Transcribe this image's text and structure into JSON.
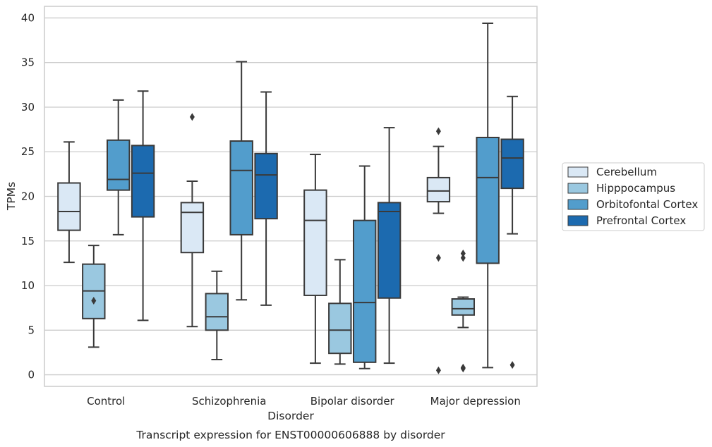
{
  "caption": "Transcript expression for ENST00000606888 by disorder",
  "chart_data": {
    "type": "box",
    "xlabel": "Disorder",
    "ylabel": "TPMs",
    "ylim": [
      -1.3,
      41.3
    ],
    "yticks": [
      0,
      5,
      10,
      15,
      20,
      25,
      30,
      35,
      40
    ],
    "grid": "horizontal",
    "legend_position": "right",
    "categories": [
      "Control",
      "Schizophrenia",
      "Bipolar disorder",
      "Major depression"
    ],
    "series": [
      {
        "name": "Cerebellum",
        "color": "#dae8f5",
        "boxes": [
          {
            "whislo": 12.6,
            "q1": 16.2,
            "med": 18.3,
            "q3": 21.5,
            "whishi": 26.1,
            "fliers": []
          },
          {
            "whislo": 5.4,
            "q1": 13.7,
            "med": 18.2,
            "q3": 19.3,
            "whishi": 21.7,
            "fliers": [
              28.9
            ]
          },
          {
            "whislo": 1.3,
            "q1": 8.9,
            "med": 17.3,
            "q3": 20.7,
            "whishi": 24.7,
            "fliers": []
          },
          {
            "whislo": 18.1,
            "q1": 19.4,
            "med": 20.6,
            "q3": 22.1,
            "whishi": 25.6,
            "fliers": [
              27.3,
              13.1,
              0.5
            ]
          }
        ]
      },
      {
        "name": "Hipppocampus",
        "color": "#9ac8e0",
        "boxes": [
          {
            "whislo": 3.1,
            "q1": 6.3,
            "med": 9.4,
            "q3": 12.4,
            "whishi": 14.5,
            "fliers": [
              8.3
            ]
          },
          {
            "whislo": 1.7,
            "q1": 5.0,
            "med": 6.5,
            "q3": 9.1,
            "whishi": 11.6,
            "fliers": []
          },
          {
            "whislo": 1.2,
            "q1": 2.4,
            "med": 5.0,
            "q3": 8.0,
            "whishi": 12.9,
            "fliers": []
          },
          {
            "whislo": 5.3,
            "q1": 6.7,
            "med": 7.4,
            "q3": 8.5,
            "whishi": 8.7,
            "fliers": [
              13.6,
              13.1,
              0.8,
              0.7
            ]
          }
        ]
      },
      {
        "name": "Orbitofontal Cortex",
        "color": "#529dcc",
        "boxes": [
          {
            "whislo": 15.7,
            "q1": 20.7,
            "med": 21.9,
            "q3": 26.3,
            "whishi": 30.8,
            "fliers": []
          },
          {
            "whislo": 8.4,
            "q1": 15.7,
            "med": 22.9,
            "q3": 26.2,
            "whishi": 35.1,
            "fliers": []
          },
          {
            "whislo": 0.7,
            "q1": 1.4,
            "med": 8.1,
            "q3": 17.3,
            "whishi": 23.4,
            "fliers": []
          },
          {
            "whislo": 0.8,
            "q1": 12.5,
            "med": 22.1,
            "q3": 26.6,
            "whishi": 39.4,
            "fliers": []
          }
        ]
      },
      {
        "name": "Prefrontal Cortex",
        "color": "#1c6aaf",
        "boxes": [
          {
            "whislo": 6.1,
            "q1": 17.7,
            "med": 22.6,
            "q3": 25.7,
            "whishi": 31.8,
            "fliers": []
          },
          {
            "whislo": 7.8,
            "q1": 17.5,
            "med": 22.4,
            "q3": 24.8,
            "whishi": 31.7,
            "fliers": []
          },
          {
            "whislo": 1.3,
            "q1": 8.6,
            "med": 18.3,
            "q3": 19.3,
            "whishi": 27.7,
            "fliers": []
          },
          {
            "whislo": 15.8,
            "q1": 20.9,
            "med": 24.3,
            "q3": 26.4,
            "whishi": 31.2,
            "fliers": [
              1.1
            ]
          }
        ]
      }
    ]
  }
}
